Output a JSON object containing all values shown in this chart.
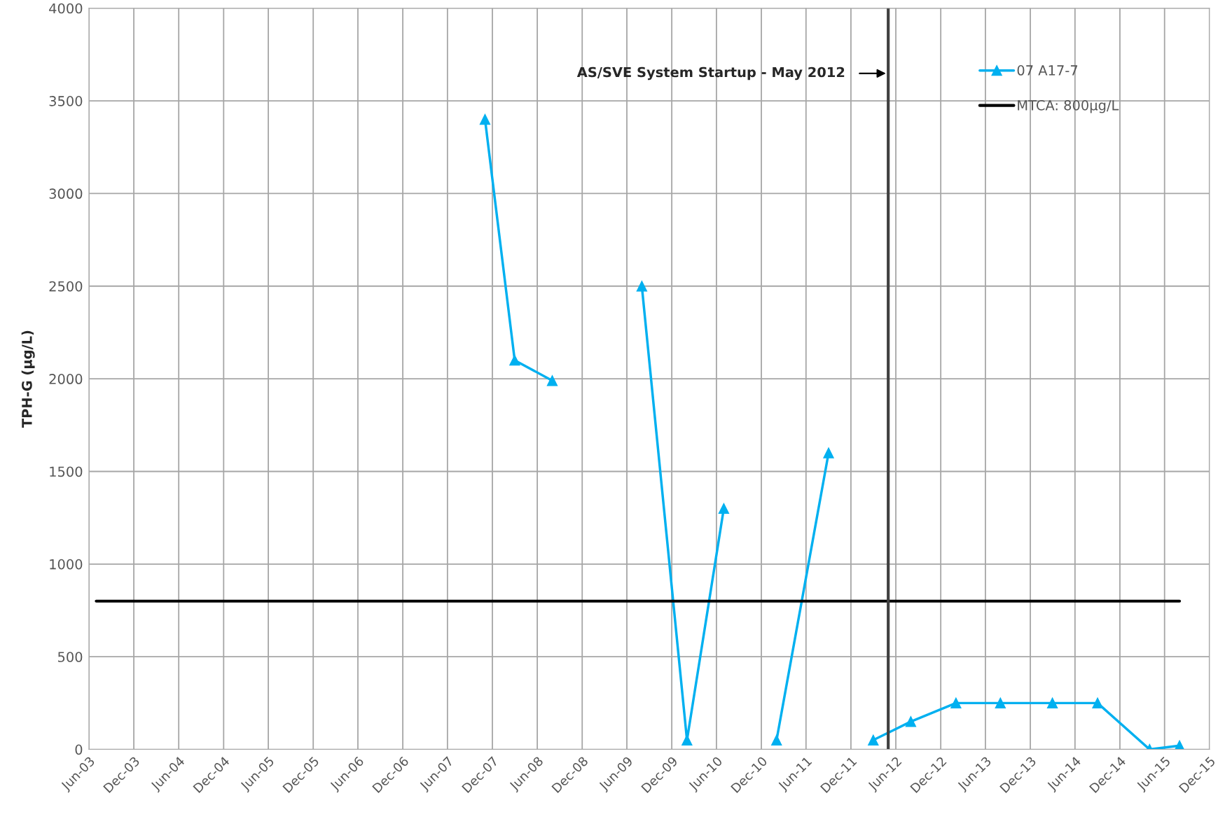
{
  "chart_data": {
    "type": "line",
    "ylabel": "TPH-G (µg/L)",
    "xlim": [
      "2003-06",
      "2015-12"
    ],
    "ylim": [
      0,
      4000
    ],
    "yticks": [
      0,
      500,
      1000,
      1500,
      2000,
      2500,
      3000,
      3500,
      4000
    ],
    "xticks": [
      {
        "value": "2003-06",
        "label": "Jun-03"
      },
      {
        "value": "2003-12",
        "label": "Dec-03"
      },
      {
        "value": "2004-06",
        "label": "Jun-04"
      },
      {
        "value": "2004-12",
        "label": "Dec-04"
      },
      {
        "value": "2005-06",
        "label": "Jun-05"
      },
      {
        "value": "2005-12",
        "label": "Dec-05"
      },
      {
        "value": "2006-06",
        "label": "Jun-06"
      },
      {
        "value": "2006-12",
        "label": "Dec-06"
      },
      {
        "value": "2007-06",
        "label": "Jun-07"
      },
      {
        "value": "2007-12",
        "label": "Dec-07"
      },
      {
        "value": "2008-06",
        "label": "Jun-08"
      },
      {
        "value": "2008-12",
        "label": "Dec-08"
      },
      {
        "value": "2009-06",
        "label": "Jun-09"
      },
      {
        "value": "2009-12",
        "label": "Dec-09"
      },
      {
        "value": "2010-06",
        "label": "Jun-10"
      },
      {
        "value": "2010-12",
        "label": "Dec-10"
      },
      {
        "value": "2011-06",
        "label": "Jun-11"
      },
      {
        "value": "2011-12",
        "label": "Dec-11"
      },
      {
        "value": "2012-06",
        "label": "Jun-12"
      },
      {
        "value": "2012-12",
        "label": "Dec-12"
      },
      {
        "value": "2013-06",
        "label": "Jun-13"
      },
      {
        "value": "2013-12",
        "label": "Dec-13"
      },
      {
        "value": "2014-06",
        "label": "Jun-14"
      },
      {
        "value": "2014-12",
        "label": "Dec-14"
      },
      {
        "value": "2015-06",
        "label": "Jun-15"
      },
      {
        "value": "2015-12",
        "label": "Dec-15"
      }
    ],
    "series": [
      {
        "name": "07 A17-7",
        "color": "#00b0f0",
        "marker": "triangle",
        "x": [
          "2007-11",
          "2008-03",
          "2008-08",
          "2009-02",
          "2009-08",
          "2010-02",
          "2010-07",
          "2010-10",
          "2011-02",
          "2011-09",
          "2011-12",
          "2012-03",
          "2012-08",
          "2013-02",
          "2013-08",
          "2014-03",
          "2014-09",
          "2015-04",
          "2015-08"
        ],
        "values": [
          3400,
          2100,
          1990,
          null,
          2500,
          50,
          1300,
          null,
          50,
          1600,
          null,
          50,
          150,
          250,
          250,
          250,
          250,
          0,
          20
        ]
      },
      {
        "name": "MTCA: 800µg/L",
        "color": "#000000",
        "marker": "none",
        "x": [
          "2003-07",
          "2015-08"
        ],
        "values": [
          800,
          800
        ]
      }
    ],
    "ref_lines": [
      {
        "axis": "x",
        "value": "2012-05",
        "color": "#404040"
      }
    ],
    "annotations": [
      "AS/SVE System Startup - May 2012"
    ],
    "grid": true,
    "legend": "top right"
  }
}
